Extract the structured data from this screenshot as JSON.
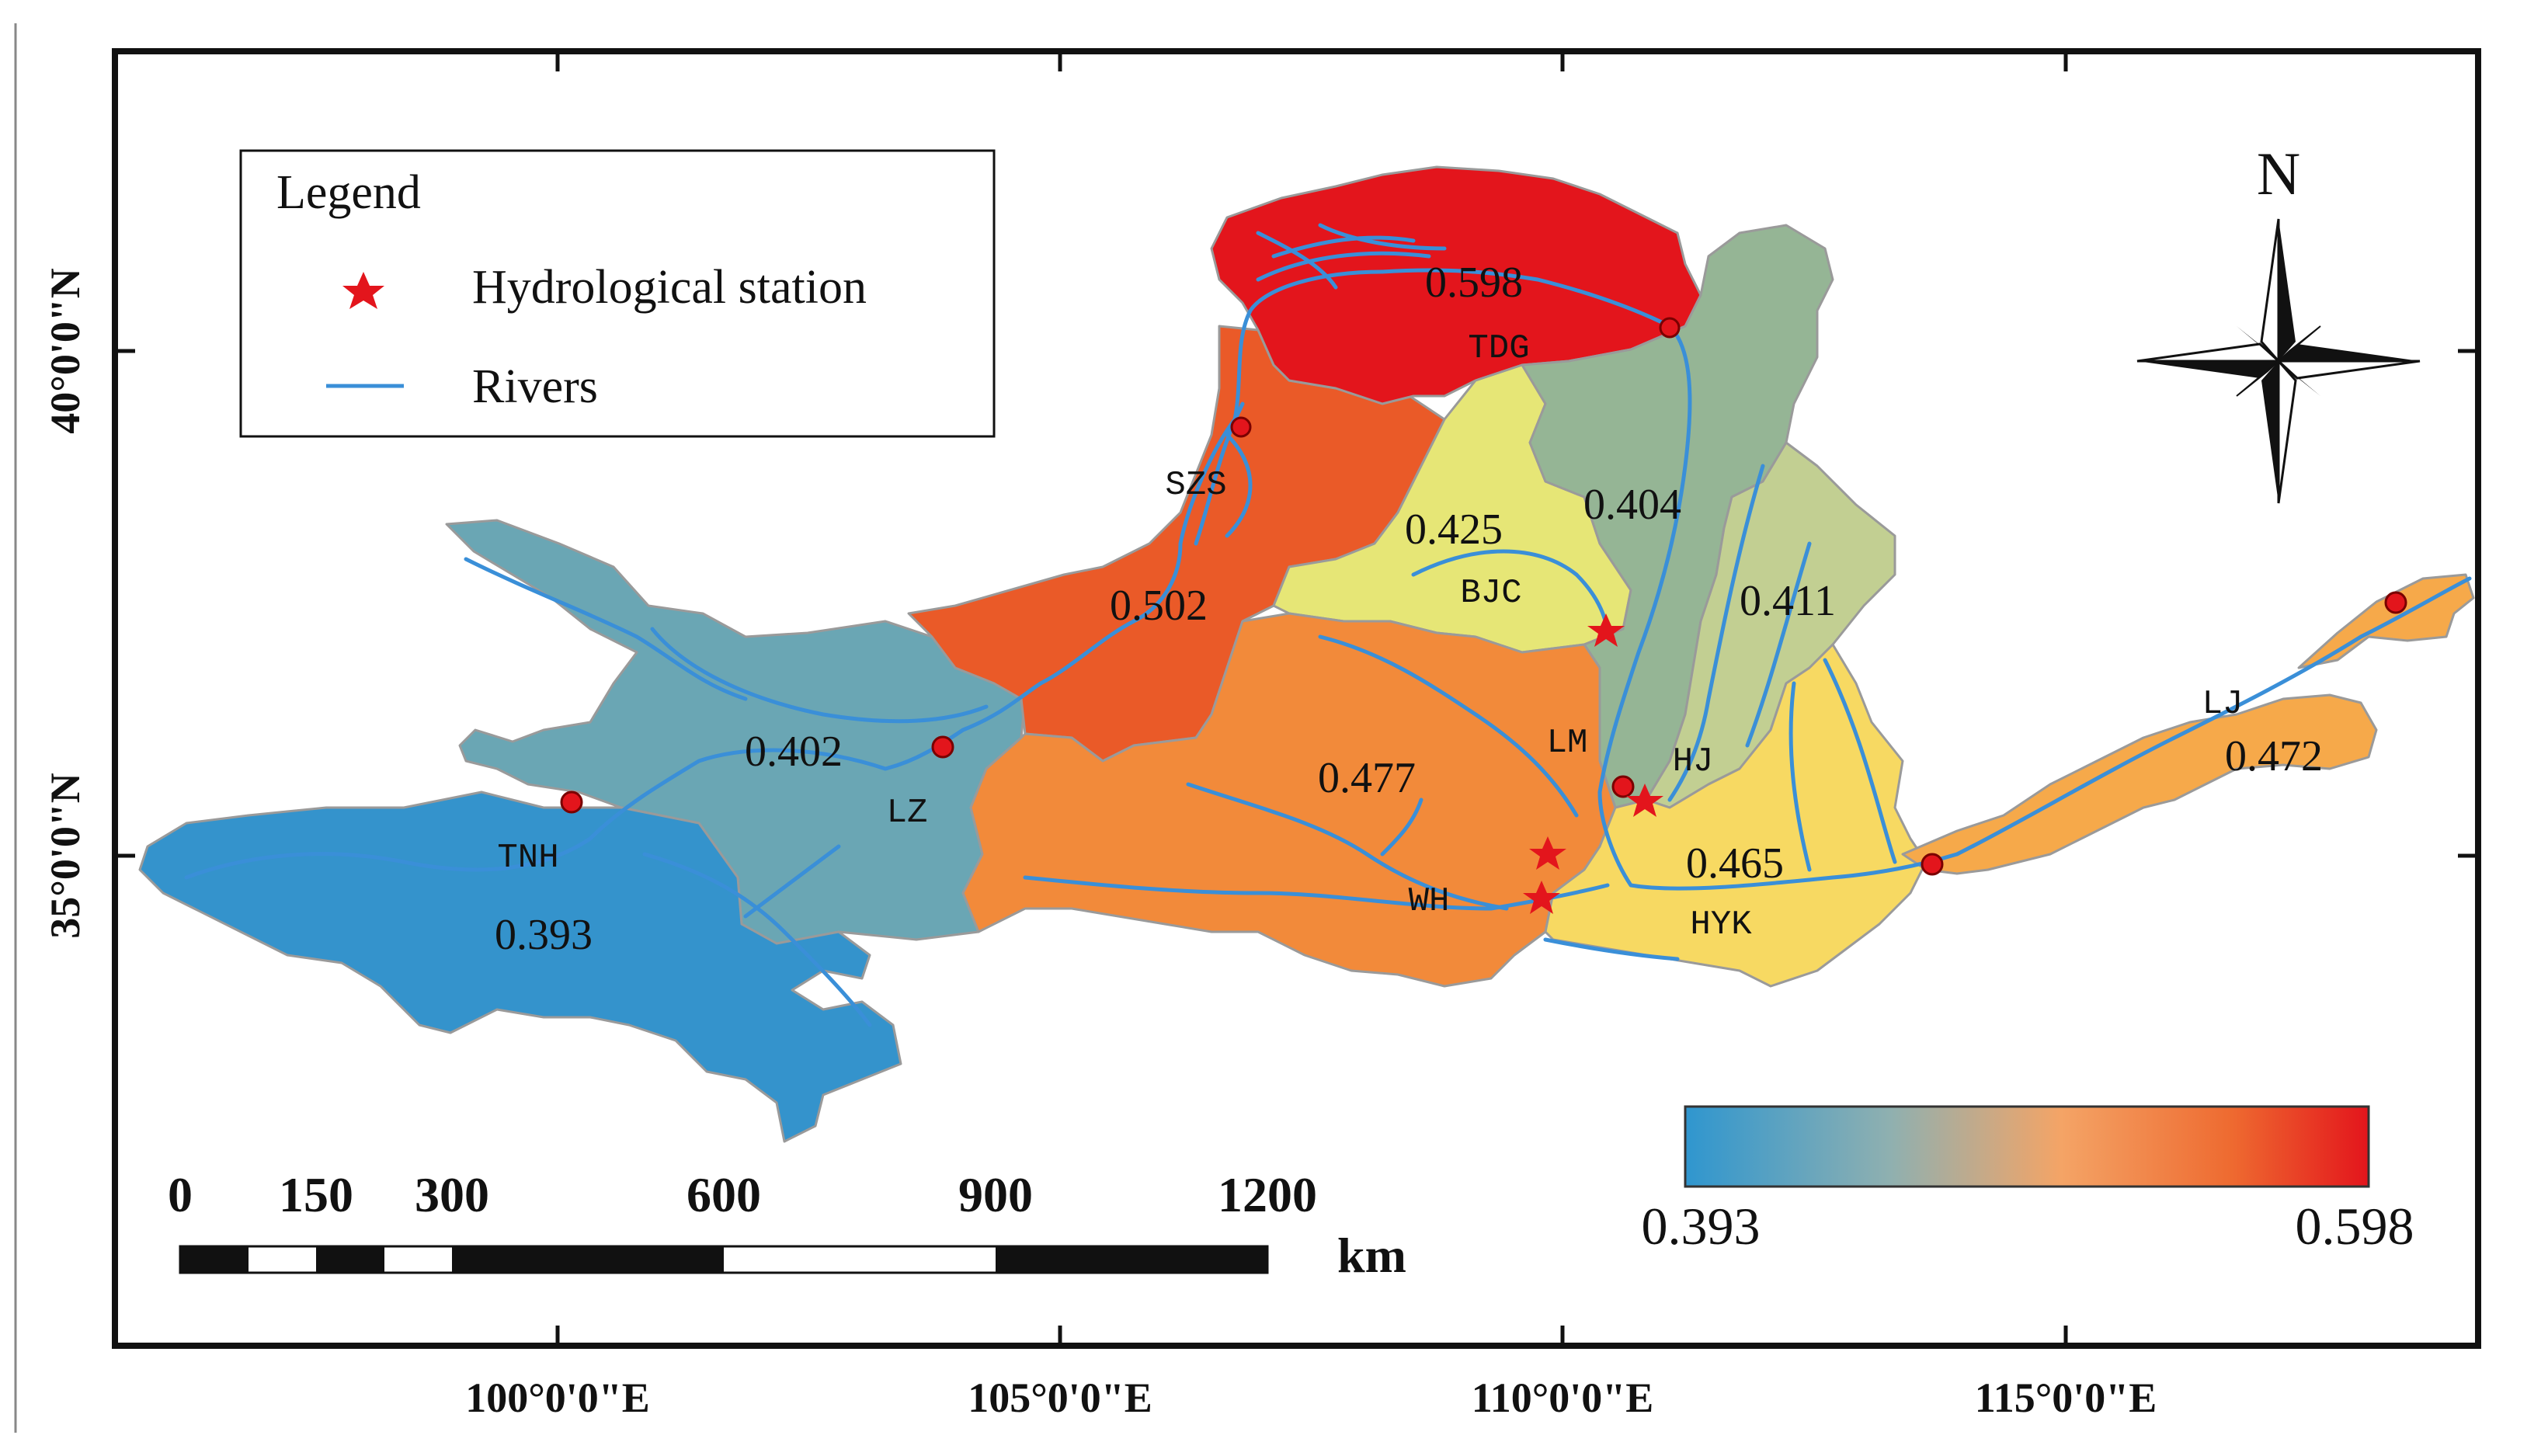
{
  "legend": {
    "title": "Legend",
    "items": [
      {
        "symbol": "red-star",
        "label": "Hydrological station"
      },
      {
        "symbol": "blue-line",
        "label": "Rivers"
      }
    ]
  },
  "north_arrow": {
    "label": "N"
  },
  "axes": {
    "x_ticks": [
      "100°0'0\"E",
      "105°0'0\"E",
      "110°0'0\"E",
      "115°0'0\"E"
    ],
    "y_ticks": [
      "40°0'0\"N",
      "35°0'0\"N"
    ]
  },
  "scale_bar": {
    "ticks": [
      "0",
      "150",
      "300",
      "600",
      "900",
      "1200"
    ],
    "unit": "km"
  },
  "colorbar": {
    "min_label": "0.393",
    "max_label": "0.598",
    "colors": [
      "#2f96cf",
      "#8fb0b0",
      "#f4a466",
      "#ee6a30",
      "#e3151c"
    ]
  },
  "subbasins": [
    {
      "id": "TNH",
      "value": "0.393",
      "color": "#3493cc"
    },
    {
      "id": "LZ",
      "value": "0.402",
      "color": "#6aa6b4"
    },
    {
      "id": "SZS",
      "value": "0.502",
      "color": "#ea5a28"
    },
    {
      "id": "TDG",
      "value": "0.598",
      "color": "#e3151c"
    },
    {
      "id": "BJC",
      "value": "0.425",
      "color": "#e6e676"
    },
    {
      "id": "LM",
      "value": "0.404",
      "color": "#95b595"
    },
    {
      "id": "HJ",
      "value": "0.411",
      "color": "#c2cf92"
    },
    {
      "id": "WH",
      "value": "0.477",
      "color": "#f28a3a"
    },
    {
      "id": "HYK",
      "value": "0.465",
      "color": "#f7d962"
    },
    {
      "id": "LJ",
      "value": "0.472",
      "color": "#f6a94a"
    }
  ],
  "colors": {
    "river": "#3a8fd8",
    "station": "#e3151c",
    "frame": "#111111"
  }
}
